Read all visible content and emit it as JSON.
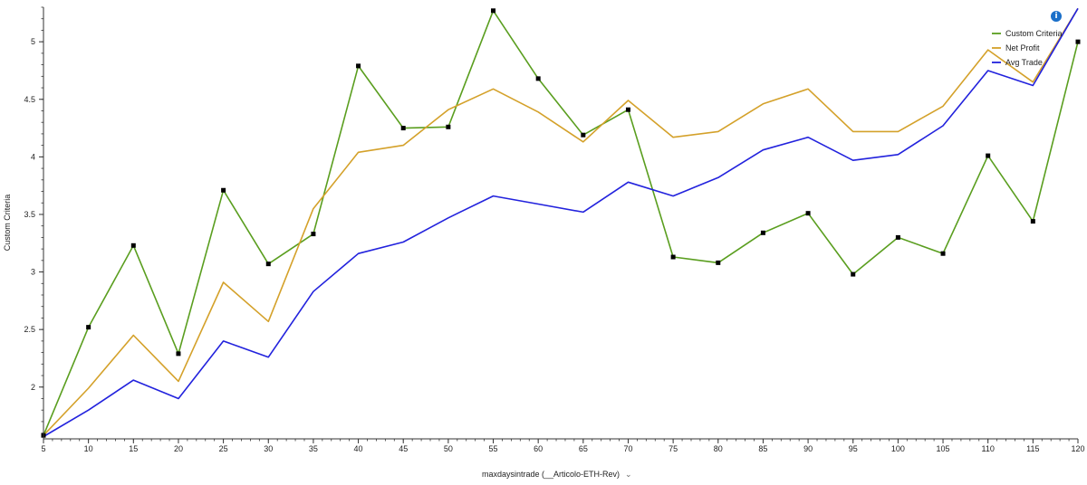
{
  "info_icon": "i",
  "x_selector": {
    "label": "maxdaysintrade (__Articolo-ETH-Rev)",
    "chevron": "⌄"
  },
  "chart_data": {
    "type": "line",
    "ylabel": "Custom Criteria",
    "xlabel": "maxdaysintrade (__Articolo-ETH-Rev)",
    "xlim": [
      5,
      120
    ],
    "ylim": [
      1.55,
      5.3
    ],
    "x_ticks": [
      5,
      10,
      15,
      20,
      25,
      30,
      35,
      40,
      45,
      50,
      55,
      60,
      65,
      70,
      75,
      80,
      85,
      90,
      95,
      100,
      105,
      110,
      115,
      120
    ],
    "y_ticks": [
      2,
      2.5,
      3,
      3.5,
      4,
      4.5,
      5
    ],
    "y_tick_labels": [
      "2",
      "2.5",
      "3",
      "3.5",
      "4",
      "4.5",
      "5"
    ],
    "legend_position": "top-right",
    "x": [
      5,
      10,
      15,
      20,
      25,
      30,
      35,
      40,
      45,
      50,
      55,
      60,
      65,
      70,
      75,
      80,
      85,
      90,
      95,
      100,
      105,
      110,
      115,
      120
    ],
    "series": [
      {
        "name": "Custom Criteria",
        "color": "#5a9e1f",
        "markers": true,
        "values": [
          1.58,
          2.52,
          3.23,
          2.29,
          3.71,
          3.07,
          3.33,
          4.79,
          4.25,
          4.26,
          5.27,
          4.68,
          4.19,
          4.41,
          3.13,
          3.08,
          3.34,
          3.51,
          2.98,
          3.3,
          3.16,
          4.01,
          3.44,
          5.0
        ]
      },
      {
        "name": "Net Profit",
        "color": "#d4a12a",
        "markers": false,
        "values": [
          1.58,
          1.99,
          2.45,
          2.05,
          2.91,
          2.57,
          3.55,
          4.04,
          4.1,
          4.41,
          4.59,
          4.39,
          4.13,
          4.49,
          4.17,
          4.22,
          4.46,
          4.59,
          4.22,
          4.22,
          4.44,
          4.93,
          4.65,
          5.29
        ]
      },
      {
        "name": "Avg Trade",
        "color": "#2222dd",
        "markers": false,
        "values": [
          1.57,
          1.8,
          2.06,
          1.9,
          2.4,
          2.26,
          2.83,
          3.16,
          3.26,
          3.47,
          3.66,
          3.59,
          3.52,
          3.78,
          3.66,
          3.82,
          4.06,
          4.17,
          3.97,
          4.02,
          4.27,
          4.75,
          4.62,
          5.29
        ]
      }
    ]
  }
}
